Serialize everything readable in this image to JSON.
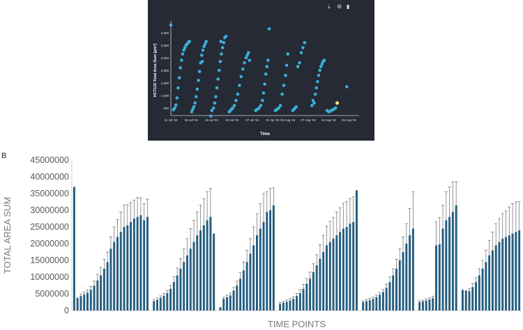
{
  "panel_a": {
    "toolbar": [
      {
        "icon": "download-icon",
        "glyph": "⤓"
      },
      {
        "icon": "gear-icon",
        "glyph": "⚙"
      },
      {
        "icon": "trash-icon",
        "glyph": "▮"
      }
    ],
    "colors": {
      "background": "#252a35",
      "point": "#3ab0d8",
      "highlight": "#f2e27a"
    }
  },
  "panel_b": {
    "label": "B",
    "colors": {
      "bar": "#255d80",
      "error": "#7a7a7a"
    }
  },
  "chart_data": [
    {
      "type": "scatter",
      "xlabel": "Time",
      "ylabel": "HCT116 Total Area Sum [µm²]",
      "x_ticks": [
        "11 Jul '24",
        "15 Jul '24",
        "19 Jul '24",
        "23 Jul '24",
        "27 Jul '24",
        "31 Jul '24",
        "03 Aug '24",
        "07 Aug '24",
        "11 Aug '24",
        "15 Aug '24"
      ],
      "y_ticks": [
        "500",
        "1,000",
        "1,500",
        "2,000",
        "2,500",
        "3,000",
        "3,500"
      ],
      "ylim": [
        200,
        3800
      ],
      "x_unit": "days since 11 Jul '24",
      "points": [
        [
          0,
          3800
        ],
        [
          0.45,
          430
        ],
        [
          0.7,
          500
        ],
        [
          0.9,
          620
        ],
        [
          1.1,
          900
        ],
        [
          1.3,
          1300
        ],
        [
          1.5,
          1700
        ],
        [
          1.7,
          2100
        ],
        [
          1.9,
          2400
        ],
        [
          2.1,
          2650
        ],
        [
          2.3,
          2800
        ],
        [
          2.5,
          2900
        ],
        [
          2.7,
          3000
        ],
        [
          2.9,
          3050
        ],
        [
          3.1,
          3100
        ],
        [
          3.3,
          3150
        ],
        [
          3.7,
          350
        ],
        [
          3.9,
          450
        ],
        [
          4.1,
          550
        ],
        [
          4.3,
          700
        ],
        [
          4.5,
          950
        ],
        [
          4.7,
          1250
        ],
        [
          4.9,
          1600
        ],
        [
          5.1,
          1950
        ],
        [
          5.3,
          2300
        ],
        [
          5.5,
          2600
        ],
        [
          5.7,
          2800
        ],
        [
          5.9,
          2950
        ],
        [
          6.1,
          3050
        ],
        [
          6.3,
          3150
        ],
        [
          5.6,
          2350
        ],
        [
          7.1,
          180
        ],
        [
          7.3,
          400
        ],
        [
          7.6,
          500
        ],
        [
          7.8,
          700
        ],
        [
          8,
          950
        ],
        [
          8.2,
          1300
        ],
        [
          8.4,
          1650
        ],
        [
          8.6,
          2000
        ],
        [
          8.8,
          2350
        ],
        [
          9,
          2650
        ],
        [
          9.2,
          2900
        ],
        [
          9.4,
          3100
        ],
        [
          9.6,
          3300
        ],
        [
          9.8,
          3350
        ],
        [
          8.9,
          3150
        ],
        [
          10.4,
          350
        ],
        [
          10.6,
          400
        ],
        [
          10.8,
          450
        ],
        [
          11,
          500
        ],
        [
          11.3,
          600
        ],
        [
          11.6,
          800
        ],
        [
          11.9,
          1050
        ],
        [
          12.2,
          1400
        ],
        [
          12.5,
          1750
        ],
        [
          12.8,
          2050
        ],
        [
          13.1,
          2300
        ],
        [
          13.4,
          2500
        ],
        [
          13.6,
          2600
        ],
        [
          13.8,
          2700
        ],
        [
          14,
          2400
        ],
        [
          15.1,
          400
        ],
        [
          15.4,
          450
        ],
        [
          15.7,
          500
        ],
        [
          16,
          600
        ],
        [
          16.3,
          800
        ],
        [
          16.5,
          1100
        ],
        [
          16.7,
          1450
        ],
        [
          16.9,
          1850
        ],
        [
          17.1,
          2150
        ],
        [
          17.3,
          2400
        ],
        [
          17.5,
          3650
        ],
        [
          18.6,
          400
        ],
        [
          18.9,
          450
        ],
        [
          19.2,
          500
        ],
        [
          19.5,
          600
        ],
        [
          19.8,
          1050
        ],
        [
          20.1,
          1400
        ],
        [
          20.4,
          1800
        ],
        [
          20.6,
          2200
        ],
        [
          20.8,
          2650
        ],
        [
          21.7,
          400
        ],
        [
          21.9,
          450
        ],
        [
          22.1,
          500
        ],
        [
          22.3,
          550
        ],
        [
          22.6,
          2150
        ],
        [
          22.9,
          2300
        ],
        [
          23.2,
          2700
        ],
        [
          23.5,
          2900
        ],
        [
          23.8,
          3100
        ],
        [
          25.1,
          600
        ],
        [
          25.3,
          800
        ],
        [
          25.5,
          700
        ],
        [
          25.7,
          1050
        ],
        [
          25.9,
          1300
        ],
        [
          26.1,
          1550
        ],
        [
          26.3,
          1800
        ],
        [
          26.5,
          2000
        ],
        [
          26.7,
          2150
        ],
        [
          26.9,
          2250
        ],
        [
          27.1,
          2350
        ],
        [
          27.3,
          2400
        ],
        [
          27.8,
          400
        ],
        [
          28.1,
          350
        ],
        [
          28.4,
          380
        ],
        [
          28.7,
          420
        ],
        [
          29,
          450
        ],
        [
          29.3,
          500
        ],
        [
          29.6,
          700
        ],
        [
          31.3,
          1350
        ]
      ],
      "highlight_point": [
        29.6,
        700
      ]
    },
    {
      "type": "bar",
      "xlabel": "TIME POINTS",
      "ylabel": "TOTAL AREA SUM",
      "y_ticks": [
        "0",
        "5000000",
        "10000000",
        "15000000",
        "20000000",
        "25000000",
        "30000000",
        "35000000",
        "40000000",
        "45000000"
      ],
      "ylim": [
        0,
        45000000
      ],
      "series": [
        {
          "groups": [
            [
              [
                37000000,
                0
              ],
              [
                3800000,
                0
              ],
              [
                4300000,
                600000
              ],
              [
                4800000,
                700000
              ],
              [
                5300000,
                800000
              ],
              [
                6200000,
                1000000
              ],
              [
                7400000,
                1400000
              ],
              [
                9000000,
                1800000
              ],
              [
                10500000,
                2400000
              ],
              [
                12500000,
                2800000
              ],
              [
                14500000,
                3000000
              ],
              [
                18500000,
                3500000
              ],
              [
                20500000,
                4500000
              ],
              [
                22000000,
                5200000
              ],
              [
                23500000,
                6000000
              ],
              [
                25000000,
                6500000
              ],
              [
                25500000,
                6200000
              ],
              [
                26500000,
                5800000
              ],
              [
                27500000,
                5500000
              ],
              [
                28000000,
                5800000
              ],
              [
                28500000,
                5200000
              ],
              [
                27000000,
                5000000
              ],
              [
                28000000,
                5300000
              ]
            ],
            [
              [
                2800000,
                500000
              ],
              [
                3200000,
                600000
              ],
              [
                3800000,
                600000
              ],
              [
                4400000,
                700000
              ],
              [
                5200000,
                800000
              ],
              [
                6500000,
                1000000
              ],
              [
                8500000,
                1600000
              ],
              [
                10500000,
                2200000
              ],
              [
                12500000,
                3000000
              ],
              [
                14500000,
                4000000
              ],
              [
                16500000,
                5000000
              ],
              [
                18500000,
                6000000
              ],
              [
                20500000,
                6500000
              ],
              [
                22500000,
                7000000
              ],
              [
                24000000,
                7500000
              ],
              [
                25500000,
                8000000
              ],
              [
                27000000,
                8500000
              ],
              [
                28000000,
                8500000
              ],
              [
                23000000,
                0
              ]
            ],
            [
              [
                1000000,
                0
              ],
              [
                3500000,
                500000
              ],
              [
                4000000,
                600000
              ],
              [
                4500000,
                700000
              ],
              [
                6000000,
                900000
              ],
              [
                7500000,
                1300000
              ],
              [
                9500000,
                1800000
              ],
              [
                12000000,
                2500000
              ],
              [
                14500000,
                3500000
              ],
              [
                17000000,
                4500000
              ],
              [
                19500000,
                5500000
              ],
              [
                22500000,
                6500000
              ],
              [
                24500000,
                7500000
              ],
              [
                26500000,
                8500000
              ],
              [
                29500000,
                6000000
              ],
              [
                30000000,
                6500000
              ],
              [
                31500000,
                5200000
              ]
            ],
            [
              [
                2000000,
                400000
              ],
              [
                2300000,
                400000
              ],
              [
                2600000,
                500000
              ],
              [
                3000000,
                600000
              ],
              [
                3500000,
                600000
              ],
              [
                4300000,
                800000
              ],
              [
                5200000,
                1000000
              ],
              [
                6500000,
                1300000
              ],
              [
                8000000,
                1600000
              ],
              [
                9500000,
                2000000
              ],
              [
                11500000,
                2500000
              ],
              [
                13500000,
                3200000
              ],
              [
                15500000,
                4200000
              ],
              [
                17500000,
                5000000
              ],
              [
                19500000,
                5700000
              ],
              [
                20500000,
                6200000
              ],
              [
                21500000,
                6300000
              ],
              [
                22500000,
                7000000
              ],
              [
                23500000,
                7200000
              ],
              [
                24500000,
                7600000
              ],
              [
                25000000,
                7600000
              ],
              [
                26000000,
                7500000
              ],
              [
                26500000,
                7500000
              ],
              [
                36000000,
                0
              ]
            ],
            [
              [
                2500000,
                400000
              ],
              [
                2800000,
                400000
              ],
              [
                3100000,
                500000
              ],
              [
                3500000,
                500000
              ],
              [
                4000000,
                600000
              ],
              [
                4700000,
                700000
              ],
              [
                5500000,
                800000
              ],
              [
                6800000,
                1100000
              ],
              [
                8500000,
                1500000
              ],
              [
                10500000,
                2000000
              ],
              [
                12500000,
                2800000
              ],
              [
                15000000,
                3500000
              ],
              [
                17500000,
                4500000
              ],
              [
                20000000,
                6000000
              ],
              [
                22500000,
                8000000
              ],
              [
                24500000,
                11000000
              ]
            ],
            [
              [
                2500000,
                400000
              ],
              [
                2700000,
                400000
              ],
              [
                3000000,
                500000
              ],
              [
                3300000,
                500000
              ],
              [
                3700000,
                600000
              ],
              [
                19500000,
                7000000
              ],
              [
                19800000,
                8000000
              ],
              [
                24500000,
                7000000
              ],
              [
                27000000,
                8500000
              ],
              [
                28000000,
                9000000
              ],
              [
                29500000,
                9000000
              ],
              [
                31500000,
                7000000
              ]
            ],
            [
              [
                6200000,
                0
              ],
              [
                6000000,
                0
              ],
              [
                5800000,
                700000
              ],
              [
                7000000,
                1000000
              ],
              [
                8500000,
                1300000
              ],
              [
                10500000,
                2000000
              ],
              [
                12500000,
                2500000
              ],
              [
                14500000,
                3500000
              ],
              [
                16500000,
                4500000
              ],
              [
                18000000,
                5500000
              ],
              [
                19500000,
                6500000
              ],
              [
                20500000,
                7000000
              ],
              [
                21500000,
                7500000
              ],
              [
                22000000,
                7800000
              ],
              [
                22500000,
                8500000
              ],
              [
                23000000,
                9000000
              ],
              [
                23500000,
                9000000
              ],
              [
                24000000,
                8600000
              ]
            ]
          ]
        }
      ]
    }
  ]
}
